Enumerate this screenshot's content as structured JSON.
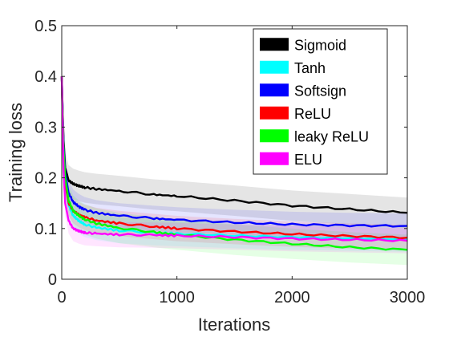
{
  "chart_data": {
    "type": "line",
    "xlabel": "Iterations",
    "ylabel": "Training loss",
    "xlim": [
      0,
      3000
    ],
    "ylim": [
      0,
      0.5
    ],
    "xticks": [
      0,
      1000,
      2000,
      3000
    ],
    "yticks": [
      0,
      0.1,
      0.2,
      0.3,
      0.4,
      0.5
    ],
    "xtick_labels": [
      "0",
      "1000",
      "2000",
      "3000"
    ],
    "ytick_labels": [
      "0",
      "0.1",
      "0.2",
      "0.3",
      "0.4",
      "0.5"
    ],
    "legend_position": "top-right",
    "grid": false,
    "series": [
      {
        "name": "Sigmoid",
        "color": "#000000",
        "band": 0.03,
        "x": [
          0,
          15,
          30,
          60,
          100,
          150,
          200,
          300,
          500,
          800,
          1000,
          1500,
          2000,
          2500,
          3000
        ],
        "y": [
          0.4,
          0.28,
          0.22,
          0.195,
          0.188,
          0.184,
          0.181,
          0.178,
          0.174,
          0.167,
          0.164,
          0.155,
          0.145,
          0.138,
          0.131
        ]
      },
      {
        "name": "Tanh",
        "color": "#00ffff",
        "band": 0.025,
        "x": [
          0,
          15,
          30,
          60,
          100,
          150,
          200,
          300,
          500,
          800,
          1000,
          1500,
          2000,
          2500,
          3000
        ],
        "y": [
          0.4,
          0.26,
          0.19,
          0.145,
          0.125,
          0.115,
          0.108,
          0.102,
          0.096,
          0.092,
          0.09,
          0.086,
          0.083,
          0.081,
          0.079
        ]
      },
      {
        "name": "Softsign",
        "color": "#0000ff",
        "band": 0.025,
        "x": [
          0,
          15,
          30,
          60,
          100,
          150,
          200,
          300,
          500,
          800,
          1000,
          1500,
          2000,
          2500,
          3000
        ],
        "y": [
          0.4,
          0.27,
          0.21,
          0.17,
          0.152,
          0.143,
          0.137,
          0.131,
          0.125,
          0.12,
          0.117,
          0.112,
          0.108,
          0.106,
          0.105
        ]
      },
      {
        "name": "ReLU",
        "color": "#ff0000",
        "band": 0.025,
        "x": [
          0,
          15,
          30,
          60,
          100,
          150,
          200,
          300,
          500,
          800,
          1000,
          1500,
          2000,
          2500,
          3000
        ],
        "y": [
          0.4,
          0.25,
          0.19,
          0.15,
          0.135,
          0.127,
          0.122,
          0.116,
          0.11,
          0.104,
          0.1,
          0.094,
          0.089,
          0.085,
          0.082
        ]
      },
      {
        "name": "leaky ReLU",
        "color": "#00ff00",
        "band": 0.03,
        "x": [
          0,
          15,
          30,
          60,
          100,
          150,
          200,
          300,
          500,
          800,
          1000,
          1500,
          2000,
          2500,
          3000
        ],
        "y": [
          0.4,
          0.26,
          0.2,
          0.155,
          0.135,
          0.125,
          0.118,
          0.11,
          0.101,
          0.093,
          0.088,
          0.078,
          0.07,
          0.063,
          0.058
        ]
      },
      {
        "name": "ELU",
        "color": "#ff00ff",
        "band": 0.025,
        "x": [
          0,
          15,
          30,
          60,
          100,
          150,
          200,
          300,
          500,
          800,
          1000,
          1500,
          2000,
          2500,
          3000
        ],
        "y": [
          0.4,
          0.22,
          0.15,
          0.115,
          0.1,
          0.095,
          0.092,
          0.09,
          0.088,
          0.087,
          0.086,
          0.083,
          0.08,
          0.078,
          0.076
        ]
      }
    ]
  }
}
